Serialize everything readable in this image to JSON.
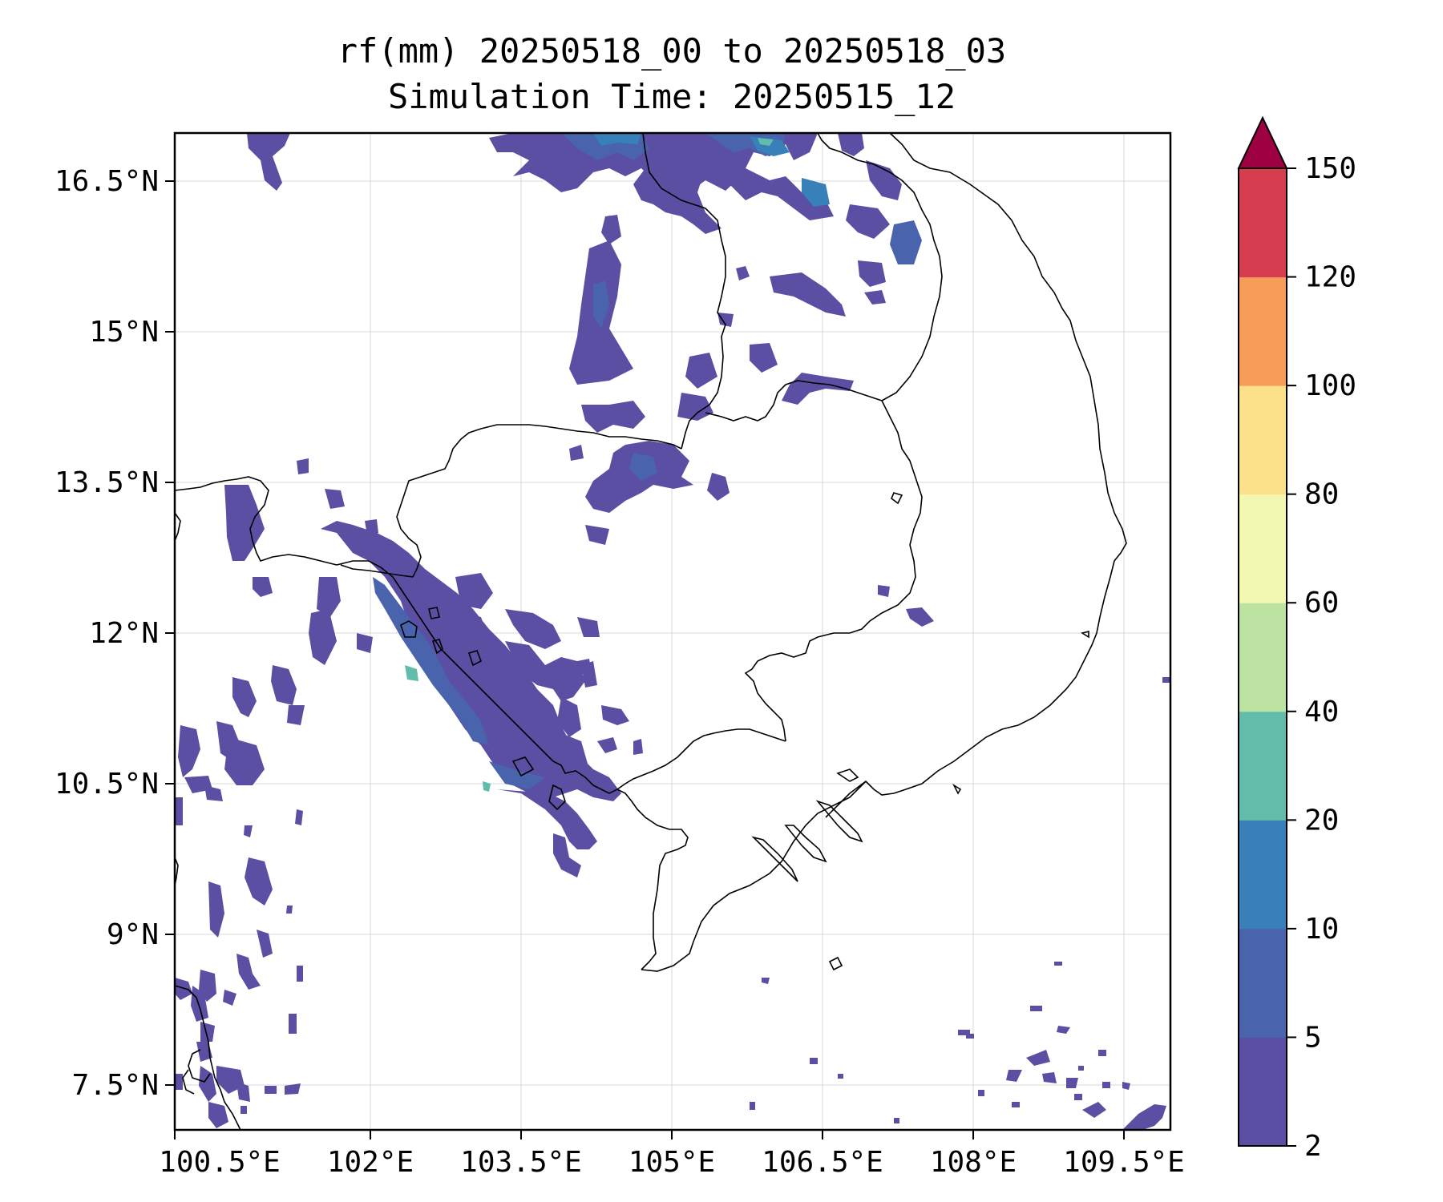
{
  "title": {
    "line1": "rf(mm) 20250518_00 to 20250518_03",
    "line2": "Simulation Time: 20250515_12"
  },
  "map": {
    "lon_ticks": [
      "100.5°E",
      "102°E",
      "103.5°E",
      "105°E",
      "106.5°E",
      "108°E",
      "109.5°E"
    ],
    "lat_ticks": [
      "16.5°N",
      "15°N",
      "13.5°N",
      "12°N",
      "10.5°N",
      "9°N",
      "7.5°N"
    ],
    "grid": true,
    "region": "Cambodia, southern Vietnam, Laos, Gulf of Thailand"
  },
  "colorbar": {
    "levels": [
      "2",
      "5",
      "10",
      "20",
      "40",
      "60",
      "80",
      "100",
      "120",
      "150"
    ],
    "colors": [
      "#5a4fa2",
      "#4a63ad",
      "#3780b8",
      "#61bca9",
      "#bde3a3",
      "#f2f8b0",
      "#fce08a",
      "#f89c5a",
      "#d63e4f",
      "#9e0142"
    ],
    "extend": "max"
  }
}
